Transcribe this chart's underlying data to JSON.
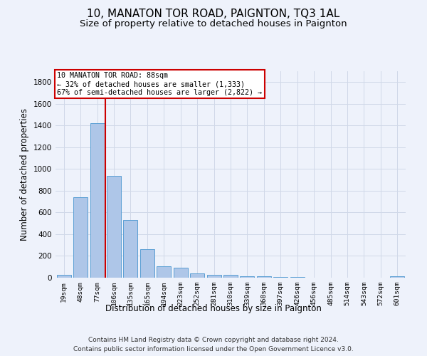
{
  "title": "10, MANATON TOR ROAD, PAIGNTON, TQ3 1AL",
  "subtitle": "Size of property relative to detached houses in Paignton",
  "xlabel": "Distribution of detached houses by size in Paignton",
  "ylabel": "Number of detached properties",
  "footer_line1": "Contains HM Land Registry data © Crown copyright and database right 2024.",
  "footer_line2": "Contains public sector information licensed under the Open Government Licence v3.0.",
  "categories": [
    "19sqm",
    "48sqm",
    "77sqm",
    "106sqm",
    "135sqm",
    "165sqm",
    "194sqm",
    "223sqm",
    "252sqm",
    "281sqm",
    "310sqm",
    "339sqm",
    "368sqm",
    "397sqm",
    "426sqm",
    "456sqm",
    "485sqm",
    "514sqm",
    "543sqm",
    "572sqm",
    "601sqm"
  ],
  "values": [
    25,
    740,
    1420,
    940,
    530,
    265,
    105,
    95,
    40,
    28,
    28,
    15,
    15,
    8,
    5,
    3,
    2,
    2,
    1,
    1,
    12
  ],
  "bar_color": "#aec6e8",
  "bar_edge_color": "#5a9fd4",
  "red_line_x": 2.5,
  "annotation_line1": "10 MANATON TOR ROAD: 88sqm",
  "annotation_line2": "← 32% of detached houses are smaller (1,333)",
  "annotation_line3": "67% of semi-detached houses are larger (2,822) →",
  "annotation_box_color": "#ffffff",
  "annotation_box_edge_color": "#cc0000",
  "red_line_color": "#cc0000",
  "ylim": [
    0,
    1900
  ],
  "yticks": [
    0,
    200,
    400,
    600,
    800,
    1000,
    1200,
    1400,
    1600,
    1800
  ],
  "grid_color": "#d0d8e8",
  "bg_color": "#eef2fb",
  "axes_bg_color": "#eef2fb",
  "title_fontsize": 11,
  "subtitle_fontsize": 9.5,
  "xlabel_fontsize": 8.5,
  "ylabel_fontsize": 8.5
}
